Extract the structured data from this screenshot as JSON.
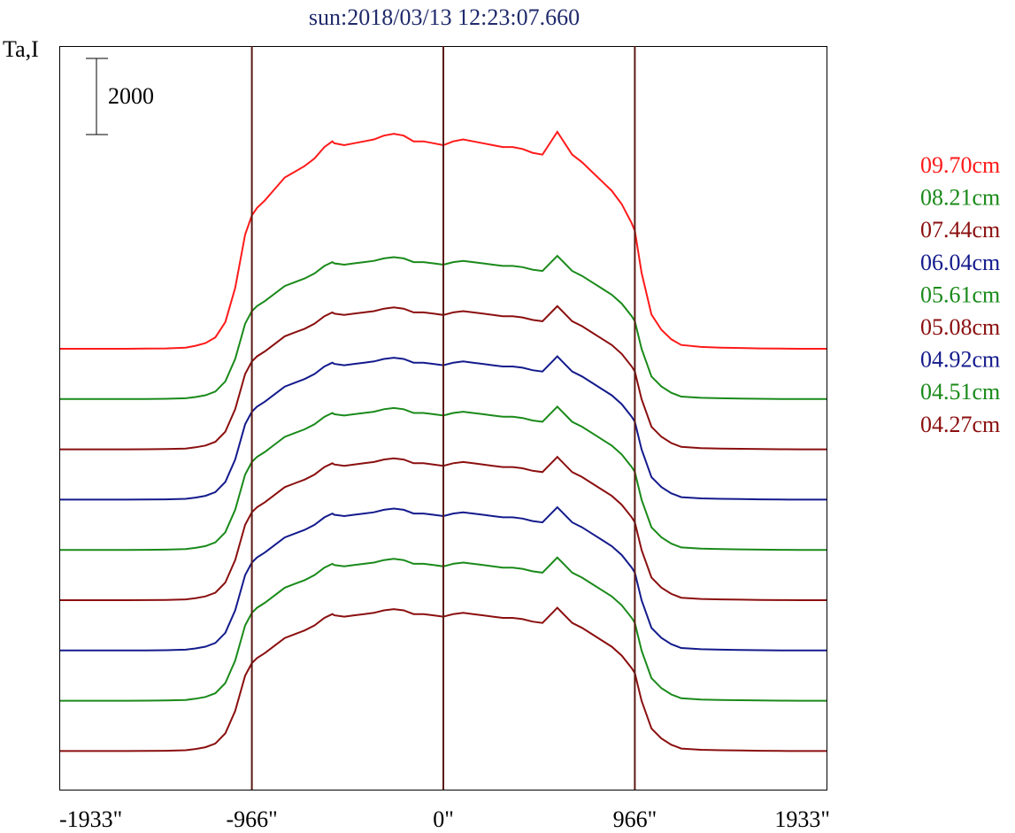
{
  "chart_data": {
    "type": "line",
    "title": "sun:2018/03/13 12:23:07.660",
    "ylabel": "Ta,I",
    "scale_bar_label": "2000",
    "scale_bar_value": 2000,
    "xlim": [
      -1933,
      1933
    ],
    "x_ticks": [
      {
        "value": -1933,
        "label": "-1933\""
      },
      {
        "value": -966,
        "label": "-966\""
      },
      {
        "value": 0,
        "label": "0\""
      },
      {
        "value": 966,
        "label": "966\""
      },
      {
        "value": 1933,
        "label": "1933\""
      }
    ],
    "vertical_lines": [
      -966,
      0,
      966
    ],
    "vertical_line_color": "#5a1a14",
    "profile": {
      "x": [
        -1933,
        -1900,
        -1800,
        -1700,
        -1600,
        -1500,
        -1400,
        -1300,
        -1250,
        -1200,
        -1150,
        -1100,
        -1050,
        -1000,
        -966,
        -940,
        -900,
        -850,
        -800,
        -750,
        -700,
        -650,
        -600,
        -560,
        -550,
        -500,
        -450,
        -400,
        -350,
        -300,
        -250,
        -200,
        -150,
        -100,
        -50,
        0,
        50,
        100,
        150,
        200,
        250,
        300,
        350,
        400,
        450,
        500,
        550,
        575,
        600,
        650,
        700,
        750,
        800,
        850,
        900,
        950,
        966,
        1000,
        1050,
        1100,
        1150,
        1200,
        1300,
        1400,
        1500,
        1600,
        1700,
        1800,
        1900,
        1933
      ],
      "y": [
        0,
        0,
        0,
        0,
        0,
        5,
        10,
        30,
        80,
        150,
        300,
        700,
        1600,
        3000,
        3500,
        3700,
        3900,
        4200,
        4500,
        4650,
        4800,
        5000,
        5300,
        5450,
        5400,
        5350,
        5400,
        5450,
        5500,
        5600,
        5650,
        5600,
        5450,
        5450,
        5400,
        5350,
        5450,
        5500,
        5450,
        5400,
        5350,
        5300,
        5300,
        5250,
        5150,
        5100,
        5500,
        5700,
        5500,
        5100,
        4900,
        4650,
        4400,
        4150,
        3800,
        3300,
        3100,
        2000,
        900,
        500,
        250,
        100,
        50,
        30,
        20,
        10,
        5,
        0,
        0,
        0
      ]
    },
    "series": [
      {
        "name": "09.70cm",
        "color": "#ff1a1a",
        "scale": 1.0
      },
      {
        "name": "08.21cm",
        "color": "#1a8a1a",
        "scale": 0.66
      },
      {
        "name": "07.44cm",
        "color": "#8b0f0f",
        "scale": 0.66
      },
      {
        "name": "06.04cm",
        "color": "#141b8c",
        "scale": 0.66
      },
      {
        "name": "05.61cm",
        "color": "#1a8a1a",
        "scale": 0.66
      },
      {
        "name": "05.08cm",
        "color": "#8b0f0f",
        "scale": 0.66
      },
      {
        "name": "04.92cm",
        "color": "#141b8c",
        "scale": 0.66
      },
      {
        "name": "04.51cm",
        "color": "#1a8a1a",
        "scale": 0.66
      },
      {
        "name": "04.27cm",
        "color": "#8b0f0f",
        "scale": 0.66
      }
    ],
    "legend_position": "right",
    "grid": false
  }
}
